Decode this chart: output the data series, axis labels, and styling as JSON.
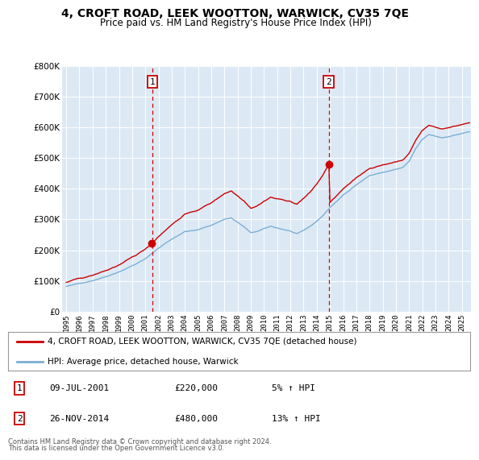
{
  "title": "4, CROFT ROAD, LEEK WOOTTON, WARWICK, CV35 7QE",
  "subtitle": "Price paid vs. HM Land Registry's House Price Index (HPI)",
  "hpi_label": "HPI: Average price, detached house, Warwick",
  "property_label": "4, CROFT ROAD, LEEK WOOTTON, WARWICK, CV35 7QE (detached house)",
  "footnote1": "Contains HM Land Registry data © Crown copyright and database right 2024.",
  "footnote2": "This data is licensed under the Open Government Licence v3.0.",
  "sale1_label": "1",
  "sale1_date": "09-JUL-2001",
  "sale1_price": "£220,000",
  "sale1_hpi": "5% ↑ HPI",
  "sale1_year": 2001.54,
  "sale1_value": 220000,
  "sale2_label": "2",
  "sale2_date": "26-NOV-2014",
  "sale2_price": "£480,000",
  "sale2_hpi": "13% ↑ HPI",
  "sale2_year": 2014.9,
  "sale2_value": 480000,
  "hpi_color": "#7bafd4",
  "property_color": "#cc0000",
  "marker_line_color": "#cc0000",
  "plot_bg": "#dce9f5",
  "ylim": [
    0,
    800000
  ],
  "yticks": [
    0,
    100000,
    200000,
    300000,
    400000,
    500000,
    600000,
    700000,
    800000
  ],
  "ytick_labels": [
    "£0",
    "£100K",
    "£200K",
    "£300K",
    "£400K",
    "£500K",
    "£600K",
    "£700K",
    "£800K"
  ],
  "xlim_left": 1994.7,
  "xlim_right": 2025.7
}
